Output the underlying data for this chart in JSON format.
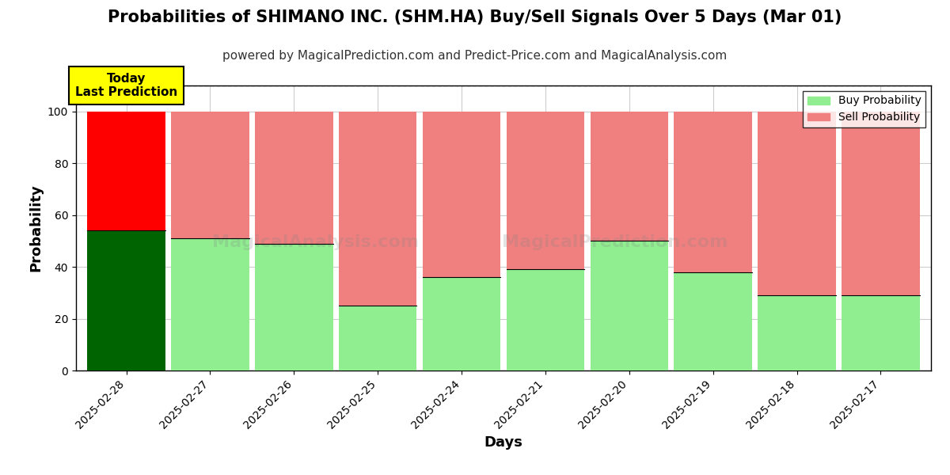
{
  "title": "Probabilities of SHIMANO INC. (SHM.HA) Buy/Sell Signals Over 5 Days (Mar 01)",
  "subtitle": "powered by MagicalPrediction.com and Predict-Price.com and MagicalAnalysis.com",
  "xlabel": "Days",
  "ylabel": "Probability",
  "categories": [
    "2025-02-28",
    "2025-02-27",
    "2025-02-26",
    "2025-02-25",
    "2025-02-24",
    "2025-02-21",
    "2025-02-20",
    "2025-02-19",
    "2025-02-18",
    "2025-02-17"
  ],
  "buy_values": [
    54,
    51,
    49,
    25,
    36,
    39,
    50,
    38,
    29,
    29
  ],
  "sell_values": [
    46,
    49,
    51,
    75,
    64,
    61,
    50,
    62,
    71,
    71
  ],
  "today_bar_buy_color": "#006400",
  "today_bar_sell_color": "#ff0000",
  "normal_bar_buy_color": "#90EE90",
  "normal_bar_sell_color": "#F08080",
  "today_annotation_bg": "#ffff00",
  "today_annotation_text": "Today\nLast Prediction",
  "ylim": [
    0,
    110
  ],
  "dashed_line_y": 110,
  "legend_buy_label": "Buy Probability",
  "legend_sell_label": "Sell Probability",
  "background_color": "#ffffff",
  "grid_color": "#cccccc",
  "title_fontsize": 15,
  "subtitle_fontsize": 11,
  "axis_label_fontsize": 13,
  "tick_fontsize": 10,
  "bar_width": 0.93
}
